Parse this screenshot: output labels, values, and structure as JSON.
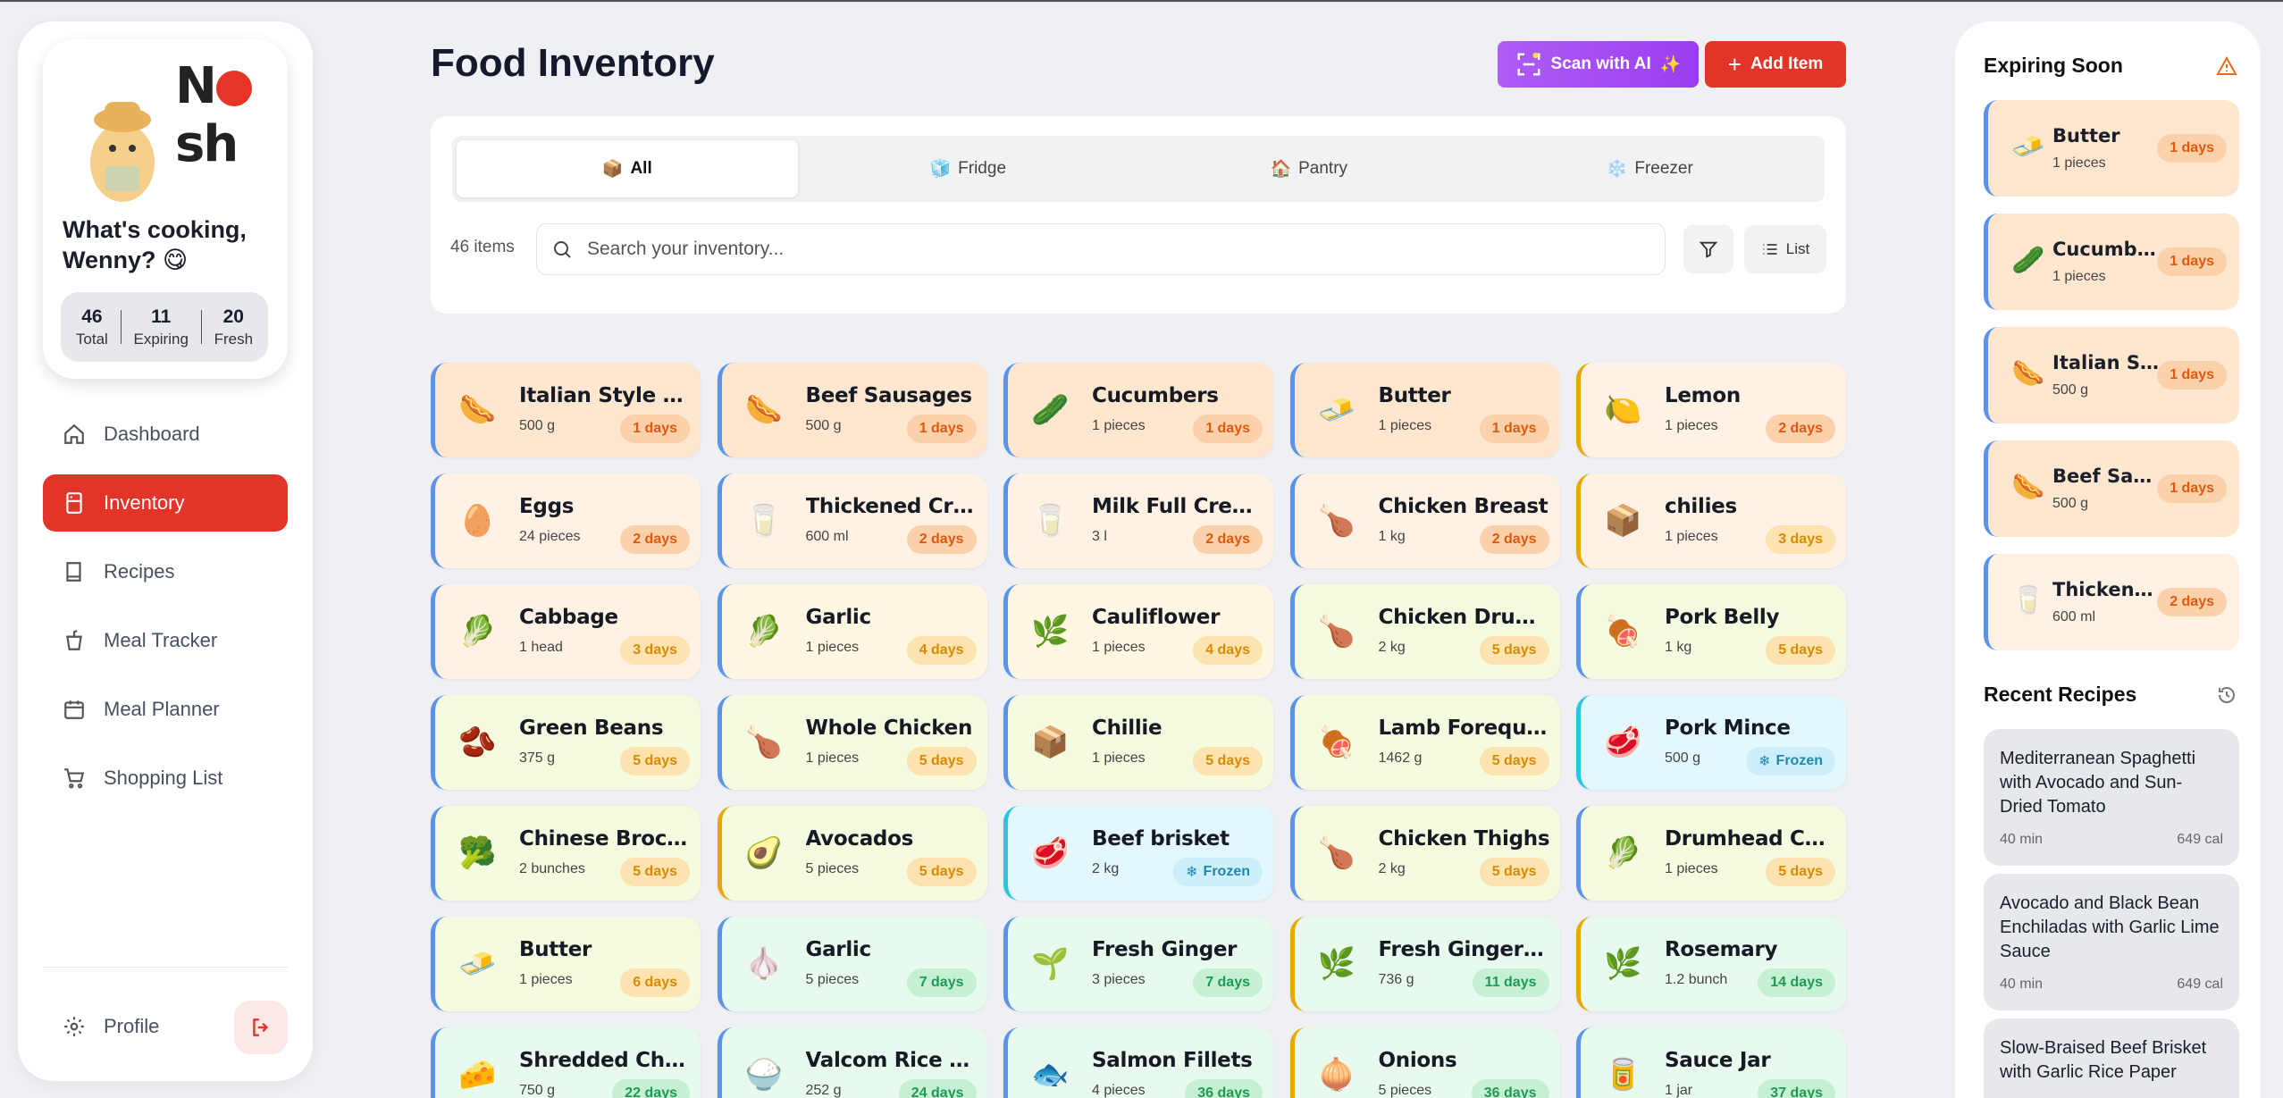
{
  "brand": {
    "logo": "Nosh"
  },
  "user": {
    "greeting": "What's cooking, Wenny? 😋",
    "stats": [
      {
        "value": "46",
        "label": "Total"
      },
      {
        "value": "11",
        "label": "Expiring"
      },
      {
        "value": "20",
        "label": "Fresh"
      }
    ]
  },
  "nav": {
    "items": [
      "Dashboard",
      "Inventory",
      "Recipes",
      "Meal Tracker",
      "Meal Planner",
      "Shopping List"
    ],
    "profile": "Profile"
  },
  "header": {
    "title": "Food Inventory",
    "scan_label": "Scan with AI",
    "add_label": "Add Item"
  },
  "tabs": [
    {
      "icon": "📦",
      "label": "All"
    },
    {
      "icon": "🧊",
      "label": "Fridge"
    },
    {
      "icon": "🏠",
      "label": "Pantry"
    },
    {
      "icon": "❄️",
      "label": "Freezer"
    }
  ],
  "toolbar": {
    "count": "46 items",
    "search_placeholder": "Search your inventory...",
    "list_label": "List"
  },
  "items": [
    {
      "name": "Italian Style Po...",
      "qty": "500 g",
      "badge": "1 days",
      "icon": "🌭"
    },
    {
      "name": "Beef Sausages",
      "qty": "500 g",
      "badge": "1 days",
      "icon": "🌭"
    },
    {
      "name": "Cucumbers",
      "qty": "1 pieces",
      "badge": "1 days",
      "icon": "🥒"
    },
    {
      "name": "Butter",
      "qty": "1 pieces",
      "badge": "1 days",
      "icon": "🧈"
    },
    {
      "name": "Lemon",
      "qty": "1 pieces",
      "badge": "2 days",
      "icon": "🍋"
    },
    {
      "name": "Eggs",
      "qty": "24 pieces",
      "badge": "2 days",
      "icon": "🥚"
    },
    {
      "name": "Thickened Cre...",
      "qty": "600 ml",
      "badge": "2 days",
      "icon": "🥛"
    },
    {
      "name": "Milk Full Cream",
      "qty": "3 l",
      "badge": "2 days",
      "icon": "🥛"
    },
    {
      "name": "Chicken Breast",
      "qty": "1 kg",
      "badge": "2 days",
      "icon": "🍗"
    },
    {
      "name": "chilies",
      "qty": "1 pieces",
      "badge": "3 days",
      "icon": "📦"
    },
    {
      "name": "Cabbage",
      "qty": "1 head",
      "badge": "3 days",
      "icon": "🥬"
    },
    {
      "name": "Garlic",
      "qty": "1 pieces",
      "badge": "4 days",
      "icon": "🥬"
    },
    {
      "name": "Cauliflower",
      "qty": "1 pieces",
      "badge": "4 days",
      "icon": "🌿"
    },
    {
      "name": "Chicken Drum...",
      "qty": "2 kg",
      "badge": "5 days",
      "icon": "🍗"
    },
    {
      "name": "Pork Belly",
      "qty": "1 kg",
      "badge": "5 days",
      "icon": "🍖"
    },
    {
      "name": "Green Beans",
      "qty": "375 g",
      "badge": "5 days",
      "icon": "🫘"
    },
    {
      "name": "Whole Chicken",
      "qty": "1 pieces",
      "badge": "5 days",
      "icon": "🍗"
    },
    {
      "name": "Chillie",
      "qty": "1 pieces",
      "badge": "5 days",
      "icon": "📦"
    },
    {
      "name": "Lamb Forequa...",
      "qty": "1462 g",
      "badge": "5 days",
      "icon": "🍖"
    },
    {
      "name": "Pork Mince",
      "qty": "500 g",
      "badge": "Frozen",
      "icon": "🥩"
    },
    {
      "name": "Chinese Brocc...",
      "qty": "2 bunches",
      "badge": "5 days",
      "icon": "🥦"
    },
    {
      "name": "Avocados",
      "qty": "5 pieces",
      "badge": "5 days",
      "icon": "🥑"
    },
    {
      "name": "Beef brisket",
      "qty": "2 kg",
      "badge": "Frozen",
      "icon": "🥩"
    },
    {
      "name": "Chicken Thighs",
      "qty": "2 kg",
      "badge": "5 days",
      "icon": "🍗"
    },
    {
      "name": "Drumhead Ca...",
      "qty": "1 pieces",
      "badge": "5 days",
      "icon": "🥬"
    },
    {
      "name": "Butter",
      "qty": "1 pieces",
      "badge": "6 days",
      "icon": "🧈"
    },
    {
      "name": "Garlic",
      "qty": "5 pieces",
      "badge": "7 days",
      "icon": "🧄"
    },
    {
      "name": "Fresh Ginger",
      "qty": "3 pieces",
      "badge": "7 days",
      "icon": "🌱"
    },
    {
      "name": "Fresh Ginger lo...",
      "qty": "736 g",
      "badge": "11 days",
      "icon": "🌿"
    },
    {
      "name": "Rosemary",
      "qty": "1.2 bunch",
      "badge": "14 days",
      "icon": "🌿"
    },
    {
      "name": "Shredded Che...",
      "qty": "750 g",
      "badge": "22 days",
      "icon": "🧀"
    },
    {
      "name": "Valcom Rice P...",
      "qty": "252 g",
      "badge": "24 days",
      "icon": "🍚"
    },
    {
      "name": "Salmon Fillets",
      "qty": "4 pieces",
      "badge": "36 days",
      "icon": "🐟"
    },
    {
      "name": "Onions",
      "qty": "5 pieces",
      "badge": "36 days",
      "icon": "🧅"
    },
    {
      "name": "Sauce Jar",
      "qty": "1 jar",
      "badge": "37 days",
      "icon": "🥫"
    }
  ],
  "expiring": {
    "title": "Expiring Soon",
    "items": [
      {
        "name": "Butter",
        "qty": "1 pieces",
        "badge": "1 days",
        "icon": "🧈"
      },
      {
        "name": "Cucumbers",
        "qty": "1 pieces",
        "badge": "1 days",
        "icon": "🥒"
      },
      {
        "name": "Italian Styl...",
        "qty": "500 g",
        "badge": "1 days",
        "icon": "🌭"
      },
      {
        "name": "Beef Saus...",
        "qty": "500 g",
        "badge": "1 days",
        "icon": "🌭"
      },
      {
        "name": "Thickened ...",
        "qty": "600 ml",
        "badge": "2 days",
        "icon": "🥛"
      }
    ]
  },
  "recipes": {
    "title": "Recent Recipes",
    "items": [
      {
        "title": "Mediterranean Spaghetti with Avocado and Sun-Dried Tomato",
        "time": "40 min",
        "cal": "649 cal"
      },
      {
        "title": "Avocado and Black Bean Enchiladas with Garlic Lime Sauce",
        "time": "40 min",
        "cal": "649 cal"
      },
      {
        "title": "Slow-Braised Beef Brisket with Garlic Rice Paper",
        "time": "",
        "cal": ""
      }
    ]
  },
  "colors": {
    "accent": "#e3342a",
    "ai": "#a84ef4"
  }
}
